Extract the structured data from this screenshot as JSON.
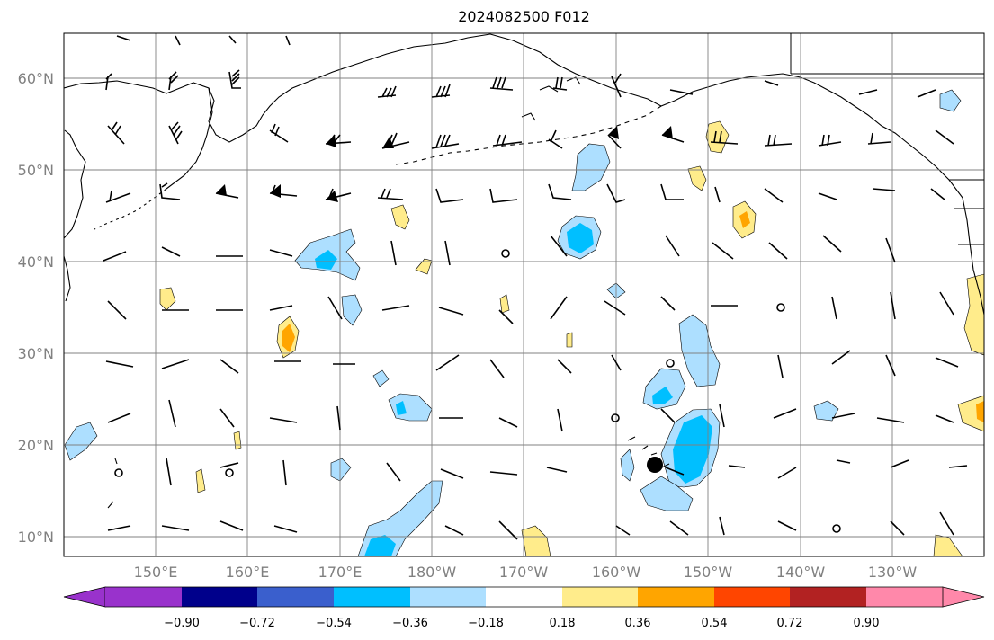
{
  "title": "2024082500 F012",
  "lat_labels": [
    "60°N",
    "50°N",
    "40°N",
    "30°N",
    "20°N",
    "10°N"
  ],
  "lon_labels": [
    "150°E",
    "160°E",
    "170°E",
    "180°W",
    "170°W",
    "160°W",
    "150°W",
    "140°W",
    "130°W"
  ],
  "colorbar": {
    "colors": [
      "#9932CC",
      "#00008B",
      "#3A5FCD",
      "#00BFFF",
      "#ADDFFF",
      "#FFFFFF",
      "#FFEC8B",
      "#FFA500",
      "#FF4500",
      "#B22222",
      "#FF88AA"
    ],
    "tick_labels": [
      "−0.90",
      "−0.72",
      "−0.54",
      "−0.36",
      "−0.18",
      "0.18",
      "0.36",
      "0.54",
      "0.72",
      "0.90"
    ]
  }
}
